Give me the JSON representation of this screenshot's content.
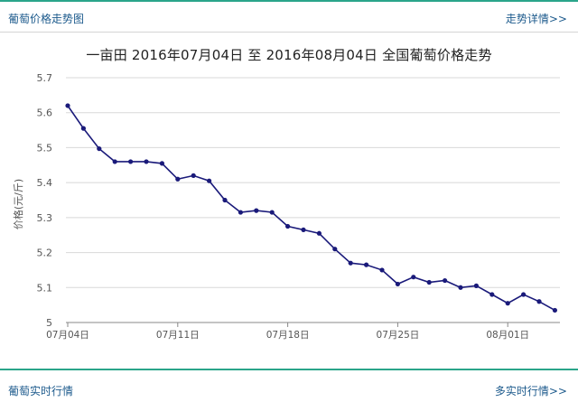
{
  "header": {
    "title": "葡萄价格走势图",
    "link": "走势详情>>"
  },
  "footer": {
    "title": "葡萄实时行情",
    "link": "多实时行情>>"
  },
  "chart_data": {
    "type": "line",
    "title": "一亩田 2016年07月04日 至 2016年08月04日 全国葡萄价格走势",
    "xlabel": "",
    "ylabel": "价格(元/斤)",
    "ylim": [
      5,
      5.7
    ],
    "yticks": [
      5,
      5.1,
      5.2,
      5.3,
      5.4,
      5.5,
      5.6,
      5.7
    ],
    "grid": true,
    "xtick_labels": [
      {
        "index": 0,
        "label": "07月04日"
      },
      {
        "index": 7,
        "label": "07月11日"
      },
      {
        "index": 14,
        "label": "07月18日"
      },
      {
        "index": 21,
        "label": "07月25日"
      },
      {
        "index": 28,
        "label": "08月01日"
      }
    ],
    "series": [
      {
        "color": "#1a1a7a",
        "values": [
          5.62,
          5.555,
          5.497,
          5.46,
          5.46,
          5.46,
          5.455,
          5.41,
          5.42,
          5.405,
          5.35,
          5.315,
          5.32,
          5.315,
          5.275,
          5.265,
          5.255,
          5.21,
          5.17,
          5.165,
          5.15,
          5.11,
          5.13,
          5.115,
          5.12,
          5.1,
          5.105,
          5.08,
          5.055,
          5.08,
          5.06,
          5.035
        ]
      }
    ]
  }
}
